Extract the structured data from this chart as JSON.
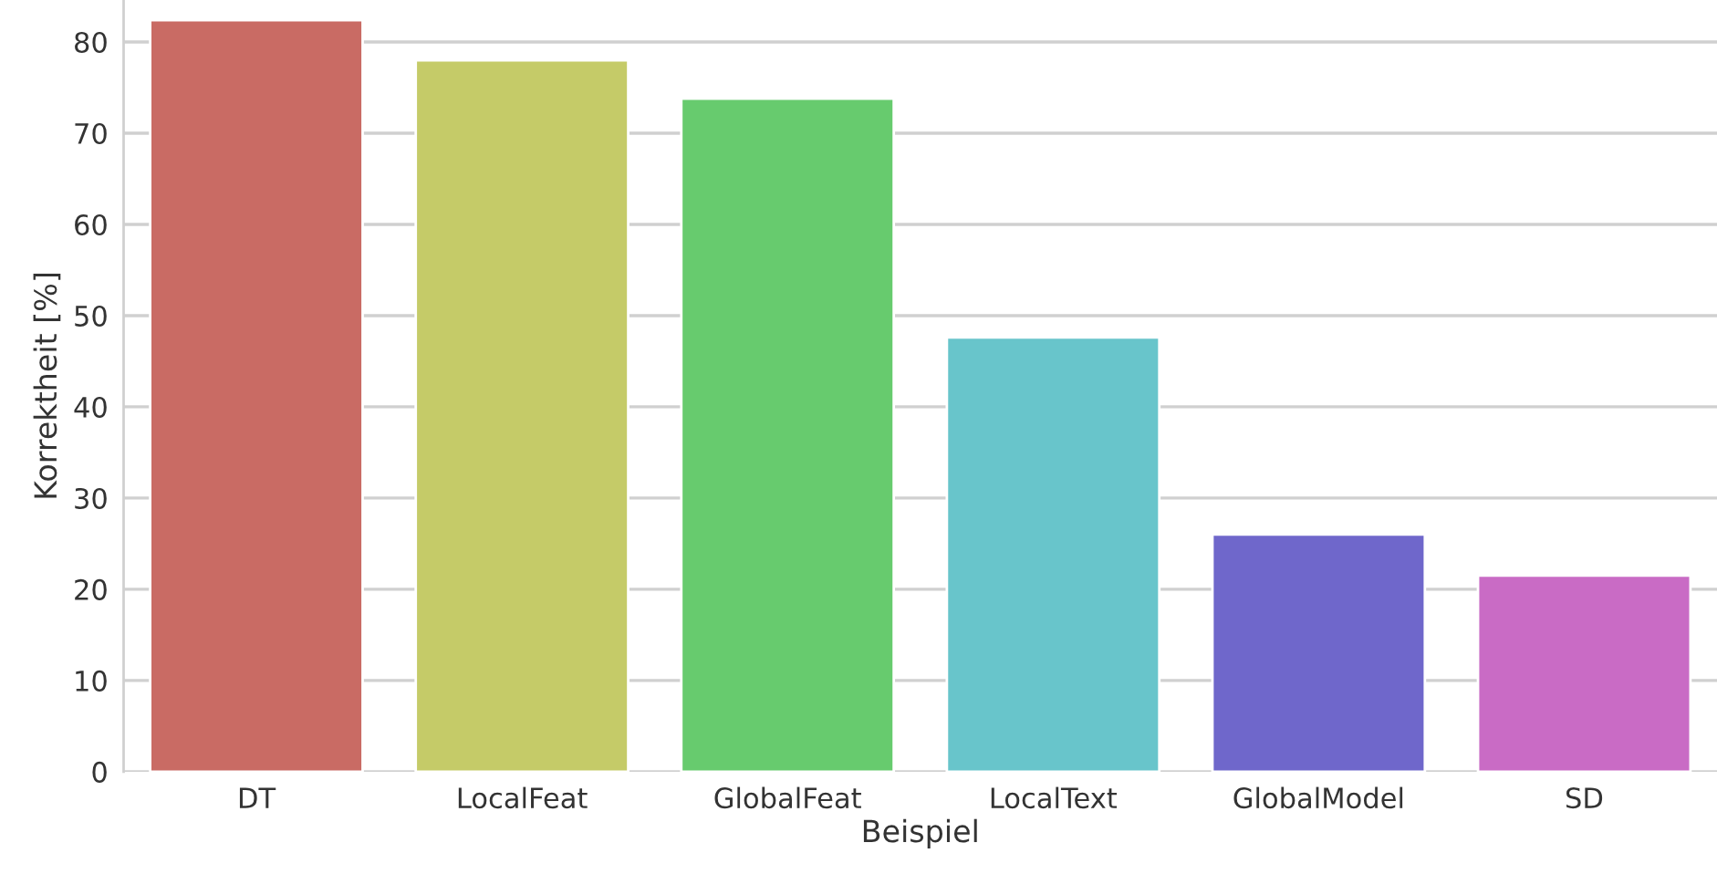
{
  "chart_data": {
    "type": "bar",
    "xlabel": "Beispiel",
    "ylabel": "Korrektheit [%]",
    "categories": [
      "DT",
      "LocalFeat",
      "GlobalFeat",
      "LocalText",
      "GlobalModel",
      "SD"
    ],
    "values": [
      82.4,
      78.0,
      73.8,
      47.6,
      26.0,
      21.5
    ],
    "colors": [
      "#c96b64",
      "#c5cb68",
      "#67cb6e",
      "#68c5cb",
      "#6f67cb",
      "#c96bc5"
    ],
    "ylim": [
      0,
      84.6
    ],
    "yticks": [
      0,
      10,
      20,
      30,
      40,
      50,
      60,
      70,
      80
    ],
    "grid": "y"
  }
}
